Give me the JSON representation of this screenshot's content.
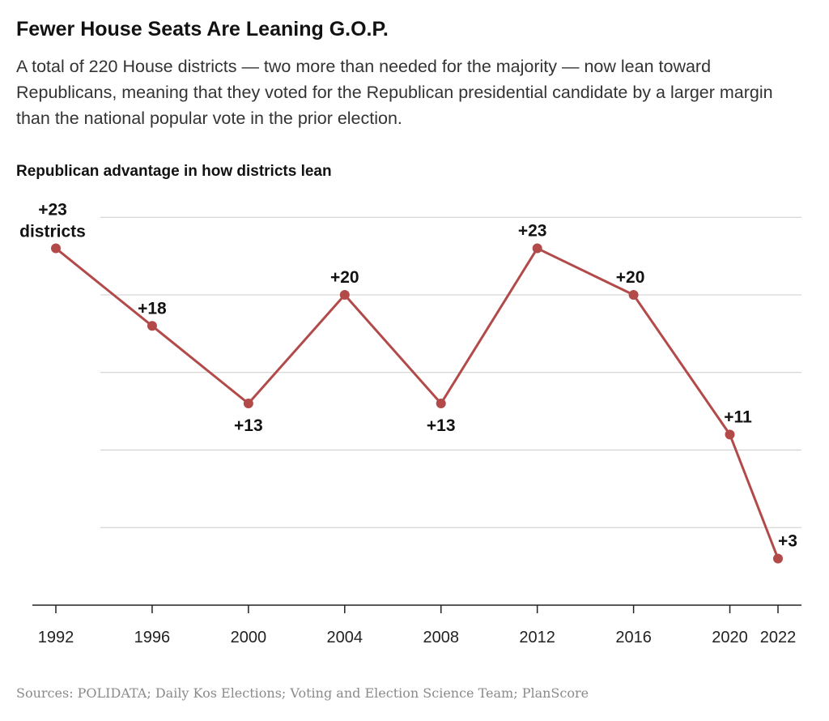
{
  "title": "Fewer House Seats Are Leaning G.O.P.",
  "subtitle": "A total of 220 House districts — two more than needed for the majority — now lean toward Republicans, meaning that they voted for the Republican presidential candidate by a larger margin than the national popular vote in the prior election.",
  "source": "Sources: POLIDATA; Daily Kos Elections; Voting and Election Science Team; PlanScore",
  "colors": {
    "line": "#b34a4a",
    "grid": "#cccccc",
    "axis": "#222222",
    "text": "#121212"
  },
  "chart_data": {
    "type": "line",
    "title": "Republican advantage in how districts lean",
    "xlabel": "",
    "ylabel": "",
    "x": [
      1992,
      1996,
      2000,
      2004,
      2008,
      2012,
      2016,
      2020,
      2022
    ],
    "series": [
      {
        "values": [
          23,
          18,
          13,
          20,
          13,
          23,
          20,
          11,
          3
        ]
      }
    ],
    "data_labels": [
      "+23",
      "+18",
      "+13",
      "+20",
      "+13",
      "+23",
      "+20",
      "+11",
      "+3"
    ],
    "first_label_unit": "districts",
    "x_ticks": [
      "1992",
      "1996",
      "2000",
      "2004",
      "2008",
      "2012",
      "2016",
      "2020",
      "2022"
    ],
    "ylim": [
      0,
      25
    ],
    "y_gridlines": [
      5,
      10,
      15,
      20,
      25
    ],
    "grid": true,
    "legend": "none"
  }
}
